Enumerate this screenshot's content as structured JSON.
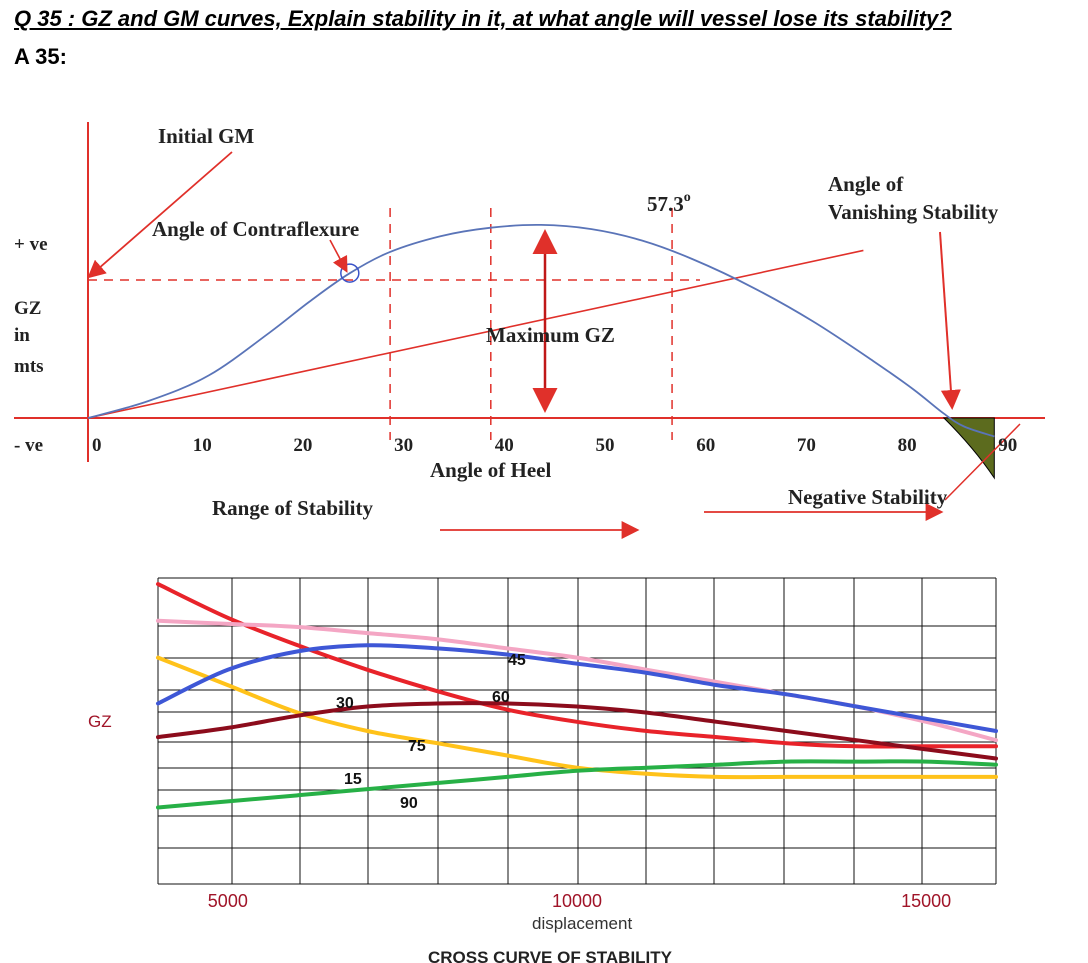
{
  "question": "Q 35 : GZ and GM curves, Explain stability in it, at what angle will vessel lose its stability?",
  "answer_label": "A 35:",
  "colors": {
    "gz_curve": "#5a74b8",
    "gm_line": "#e0302a",
    "negative_area": "#5c6b1e",
    "cross_red": "#e8232a",
    "cross_pink": "#f4a6c4",
    "cross_blue": "#3e57d6",
    "cross_yellow": "#ffc21a",
    "cross_darkred": "#8c0c1c",
    "cross_green": "#27b046"
  },
  "chart_data": [
    {
      "type": "line",
      "title": "",
      "xlabel": "Angle of Heel",
      "ylabel": "GZ in mts",
      "y_labels": [
        "+ ve",
        "- ve"
      ],
      "x_ticks": [
        "0",
        "10",
        "20",
        "30",
        "40",
        "50",
        "60",
        "70",
        "80",
        "90"
      ],
      "xlim": [
        0,
        90
      ],
      "series": [
        {
          "kind": "gz_curve",
          "x": [
            0,
            6,
            12,
            18,
            22,
            26,
            30,
            35,
            40,
            45,
            50,
            55,
            60,
            66,
            72,
            78,
            82,
            85,
            87,
            90
          ],
          "y": [
            0,
            0.12,
            0.3,
            0.6,
            0.82,
            1.02,
            1.17,
            1.28,
            1.34,
            1.36,
            1.33,
            1.25,
            1.12,
            0.92,
            0.68,
            0.4,
            0.2,
            0.03,
            -0.06,
            -0.13
          ]
        },
        {
          "kind": "initial_gm_tangent",
          "x": [
            0,
            77
          ],
          "y": [
            0,
            1.18
          ]
        }
      ],
      "annotations": {
        "initial_gm": "Initial GM",
        "contraflexure": "Angle of Contraflexure",
        "angle_57": "57.3",
        "degree": "o",
        "vanishing": "Angle of\nVanishing Stability",
        "max_gz": "Maximum GZ",
        "range": "Range of Stability",
        "negative": "Negative Stability"
      },
      "y_axis_text": {
        "plus": "+ ve",
        "gz": "GZ",
        "in": "in",
        "mts": "mts",
        "minus": "- ve"
      },
      "vertical_markers": [
        30,
        40,
        58
      ],
      "contraflexure_angle": 26,
      "max_gz_angle": 45,
      "vanishing_angle": 85
    },
    {
      "type": "line",
      "title": "CROSS CURVE OF STABILITY",
      "xlabel": "displacement",
      "ylabel": "GZ",
      "x_ticks": [
        "5000",
        "10000",
        "15000"
      ],
      "xlim": [
        4000,
        16000
      ],
      "ylim": [
        0,
        10
      ],
      "grid": true,
      "series": [
        {
          "name": "15",
          "x": [
            4000,
            5000,
            6000,
            7000,
            8000,
            9000,
            10000,
            11000,
            12000,
            13000,
            14000,
            15000,
            16000
          ],
          "y": [
            7.4,
            6.5,
            5.6,
            5.0,
            4.6,
            4.2,
            3.8,
            3.6,
            3.5,
            3.5,
            3.5,
            3.5,
            3.5
          ]
        },
        {
          "name": "30",
          "x": [
            4000,
            5000,
            6000,
            7000,
            8000,
            9000,
            10000,
            11000,
            12000,
            13000,
            14000,
            15000,
            16000
          ],
          "y": [
            9.8,
            8.7,
            7.8,
            7.0,
            6.3,
            5.7,
            5.3,
            5.0,
            4.8,
            4.6,
            4.5,
            4.5,
            4.5
          ]
        },
        {
          "name": "45",
          "x": [
            4000,
            5000,
            6000,
            7000,
            8000,
            9000,
            10000,
            11000,
            12000,
            13000,
            14000,
            15000,
            16000
          ],
          "y": [
            8.6,
            8.5,
            8.4,
            8.2,
            8.0,
            7.7,
            7.4,
            7.0,
            6.6,
            6.2,
            5.8,
            5.3,
            4.7
          ]
        },
        {
          "name": "60",
          "x": [
            4000,
            5000,
            6000,
            7000,
            8000,
            9000,
            10000,
            11000,
            12000,
            13000,
            14000,
            15000,
            16000
          ],
          "y": [
            5.9,
            7.0,
            7.6,
            7.8,
            7.7,
            7.5,
            7.2,
            6.9,
            6.5,
            6.2,
            5.8,
            5.4,
            5.0
          ]
        },
        {
          "name": "75",
          "x": [
            4000,
            5000,
            6000,
            7000,
            8000,
            9000,
            10000,
            11000,
            12000,
            13000,
            14000,
            15000,
            16000
          ],
          "y": [
            4.8,
            5.1,
            5.5,
            5.8,
            5.9,
            5.9,
            5.8,
            5.6,
            5.3,
            5.0,
            4.7,
            4.4,
            4.1
          ]
        },
        {
          "name": "90",
          "x": [
            4000,
            5000,
            6000,
            7000,
            8000,
            9000,
            10000,
            11000,
            12000,
            13000,
            14000,
            15000,
            16000
          ],
          "y": [
            2.5,
            2.7,
            2.9,
            3.1,
            3.3,
            3.5,
            3.7,
            3.8,
            3.9,
            4.0,
            4.0,
            4.0,
            3.9
          ]
        }
      ],
      "curve_labels": [
        "15",
        "30",
        "45",
        "60",
        "75",
        "90"
      ]
    }
  ]
}
